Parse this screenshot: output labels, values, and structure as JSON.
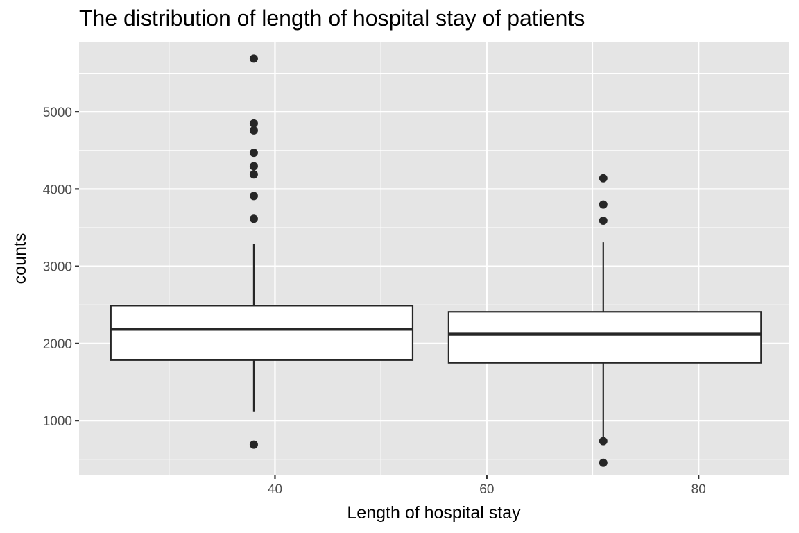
{
  "chart_data": {
    "type": "boxplot",
    "title": "The distribution of length of hospital stay of patients",
    "xlabel": "Length of hospital stay",
    "ylabel": "counts",
    "xlim": [
      21.5,
      88.5
    ],
    "ylim": [
      300,
      5900
    ],
    "x_ticks": [
      40,
      60,
      80
    ],
    "y_ticks": [
      1000,
      2000,
      3000,
      4000,
      5000
    ],
    "grid": true,
    "theme_colors": {
      "panel": "#e5e5e5",
      "grid": "#ffffff",
      "box_fill": "#ffffff",
      "stroke": "#262626",
      "point": "#262626",
      "text": "#4d4d4d"
    },
    "boxes": [
      {
        "x": 38,
        "x_range": [
          24.5,
          53
        ],
        "q1": 1785,
        "median": 2185,
        "q3": 2490,
        "whisker_low": 1120,
        "whisker_high": 3290,
        "outliers": [
          690,
          3615,
          3910,
          4190,
          4295,
          4470,
          4760,
          4850,
          5690
        ]
      },
      {
        "x": 71,
        "x_range": [
          56.4,
          85.9
        ],
        "q1": 1750,
        "median": 2120,
        "q3": 2410,
        "whisker_low": 740,
        "whisker_high": 3310,
        "outliers": [
          455,
          735,
          3590,
          3800,
          4140
        ]
      }
    ]
  }
}
